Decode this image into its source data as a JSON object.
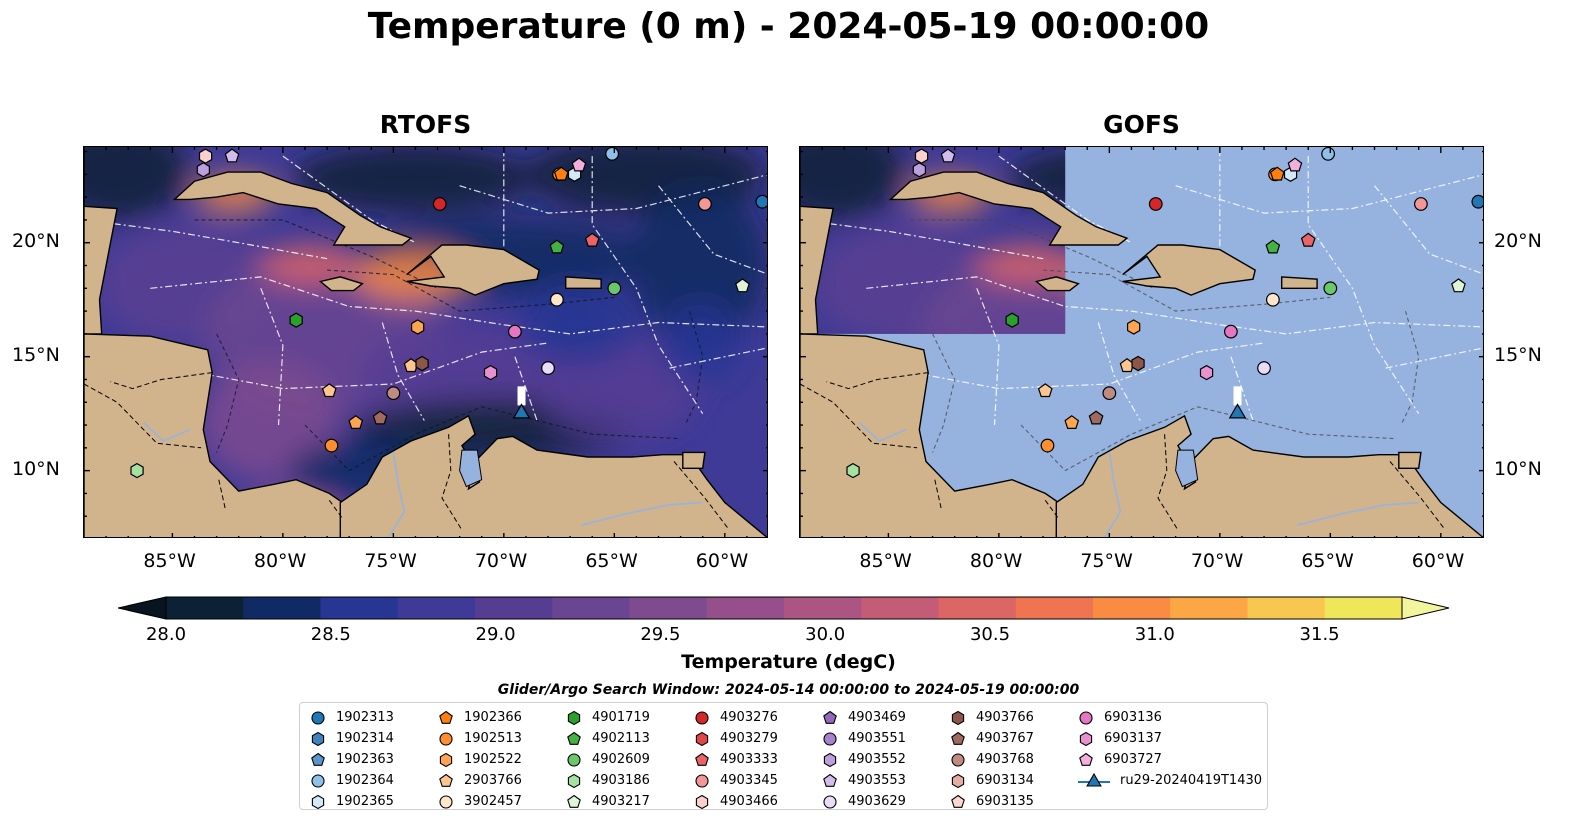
{
  "title": "Temperature (0 m) - 2024-05-19 00:00:00",
  "panels": [
    {
      "id": "rtofs",
      "title": "RTOFS"
    },
    {
      "id": "gofs",
      "title": "GOFS"
    }
  ],
  "map_extent": {
    "lon": [
      -89,
      -58
    ],
    "lat": [
      7,
      24.2
    ]
  },
  "lat_ticks": [
    {
      "lat": 20,
      "label": "20°N"
    },
    {
      "lat": 15,
      "label": "15°N"
    },
    {
      "lat": 10,
      "label": "10°N"
    }
  ],
  "lon_ticks": [
    {
      "lon": -85,
      "label": "85°W"
    },
    {
      "lon": -80,
      "label": "80°W"
    },
    {
      "lon": -75,
      "label": "75°W"
    },
    {
      "lon": -70,
      "label": "70°W"
    },
    {
      "lon": -65,
      "label": "65°W"
    },
    {
      "lon": -60,
      "label": "60°W"
    }
  ],
  "colorbar": {
    "label": "Temperature (degC)",
    "min": 28.0,
    "max": 31.75,
    "step": 0.25,
    "colors": [
      "#0d2134",
      "#122a63",
      "#273593",
      "#3f3a97",
      "#553d94",
      "#6a4592",
      "#7e4b8f",
      "#954f8a",
      "#ac5583",
      "#c45b77",
      "#dc6566",
      "#ef7552",
      "#f98b42",
      "#fca744",
      "#f7c750",
      "#f0e65a"
    ],
    "over_color": "#f3f59e",
    "under_color": "#061520",
    "ticks": [
      {
        "value": 28.0,
        "label": "28.0"
      },
      {
        "value": 28.5,
        "label": "28.5"
      },
      {
        "value": 29.0,
        "label": "29.0"
      },
      {
        "value": 29.5,
        "label": "29.5"
      },
      {
        "value": 30.0,
        "label": "30.0"
      },
      {
        "value": 30.5,
        "label": "30.5"
      },
      {
        "value": 31.0,
        "label": "31.0"
      },
      {
        "value": 31.5,
        "label": "31.5"
      }
    ]
  },
  "search_window": "Glider/Argo Search Window: 2024-05-14 00:00:00 to 2024-05-19 00:00:00",
  "land_color": "#d2b48c",
  "gofs_missing_color": "#95b3de",
  "floats": [
    {
      "id": "1902313",
      "marker": "circle",
      "color": "#1f77b4"
    },
    {
      "id": "1902314",
      "marker": "hexagon",
      "color": "#3d84bd"
    },
    {
      "id": "1902363",
      "marker": "pentagon",
      "color": "#5b95cc"
    },
    {
      "id": "1902364",
      "marker": "circle",
      "color": "#8fc0e8"
    },
    {
      "id": "1902365",
      "marker": "hexagon",
      "color": "#d5e8f8"
    },
    {
      "id": "1902366",
      "marker": "pentagon",
      "color": "#ff7f0e"
    },
    {
      "id": "1902513",
      "marker": "circle",
      "color": "#ff8f2e"
    },
    {
      "id": "1902522",
      "marker": "hexagon",
      "color": "#ffa552"
    },
    {
      "id": "2903766",
      "marker": "pentagon",
      "color": "#ffc58e"
    },
    {
      "id": "3902457",
      "marker": "circle",
      "color": "#ffe6c9"
    },
    {
      "id": "4901719",
      "marker": "hexagon",
      "color": "#2ca02c"
    },
    {
      "id": "4902113",
      "marker": "pentagon",
      "color": "#43b143"
    },
    {
      "id": "4902609",
      "marker": "circle",
      "color": "#69c869"
    },
    {
      "id": "4903186",
      "marker": "hexagon",
      "color": "#a5e1a0"
    },
    {
      "id": "4903217",
      "marker": "pentagon",
      "color": "#dff5d8"
    },
    {
      "id": "4903276",
      "marker": "circle",
      "color": "#d62728"
    },
    {
      "id": "4903279",
      "marker": "hexagon",
      "color": "#e04548"
    },
    {
      "id": "4903333",
      "marker": "pentagon",
      "color": "#ea6467"
    },
    {
      "id": "4903345",
      "marker": "circle",
      "color": "#f29696"
    },
    {
      "id": "4903466",
      "marker": "hexagon",
      "color": "#fbd0cc"
    },
    {
      "id": "4903469",
      "marker": "pentagon",
      "color": "#9467bd"
    },
    {
      "id": "4903551",
      "marker": "circle",
      "color": "#a883cc"
    },
    {
      "id": "4903552",
      "marker": "hexagon",
      "color": "#bc9fdc"
    },
    {
      "id": "4903553",
      "marker": "pentagon",
      "color": "#d2bdea"
    },
    {
      "id": "4903629",
      "marker": "circle",
      "color": "#e8dcf6"
    },
    {
      "id": "4903766",
      "marker": "hexagon",
      "color": "#8c564b"
    },
    {
      "id": "4903767",
      "marker": "pentagon",
      "color": "#a06a5e"
    },
    {
      "id": "4903768",
      "marker": "circle",
      "color": "#c08b80"
    },
    {
      "id": "6903134",
      "marker": "hexagon",
      "color": "#e3aea4"
    },
    {
      "id": "6903135",
      "marker": "pentagon",
      "color": "#fcd9cf"
    },
    {
      "id": "6903136",
      "marker": "circle",
      "color": "#e377c2"
    },
    {
      "id": "6903137",
      "marker": "hexagon",
      "color": "#e990cf"
    },
    {
      "id": "6903727",
      "marker": "pentagon",
      "color": "#f2afdc"
    }
  ],
  "glider": {
    "id": "ru29-20240419T1430",
    "marker": "triangle",
    "color": "#1f77b4",
    "lon": -69.2,
    "lat": 12.6
  },
  "map_markers": [
    {
      "marker": "circle",
      "color": "#d62728",
      "lon": -72.9,
      "lat": 21.7
    },
    {
      "marker": "circle",
      "color": "#ff8f2e",
      "lon": -67.5,
      "lat": 23.0
    },
    {
      "marker": "pentagon",
      "color": "#ff7f0e",
      "lon": -67.4,
      "lat": 23.0
    },
    {
      "marker": "hexagon",
      "color": "#d5e8f8",
      "lon": -66.8,
      "lat": 23.0
    },
    {
      "marker": "pentagon",
      "color": "#f2afdc",
      "lon": -66.6,
      "lat": 23.4
    },
    {
      "marker": "circle",
      "color": "#8fc0e8",
      "lon": -65.1,
      "lat": 23.9
    },
    {
      "marker": "circle",
      "color": "#f29696",
      "lon": -60.9,
      "lat": 21.7
    },
    {
      "marker": "circle",
      "color": "#1f77b4",
      "lon": -58.3,
      "lat": 21.8
    },
    {
      "marker": "pentagon",
      "color": "#43b143",
      "lon": -67.6,
      "lat": 19.8
    },
    {
      "marker": "pentagon",
      "color": "#ea6467",
      "lon": -66.0,
      "lat": 20.1
    },
    {
      "marker": "circle",
      "color": "#ffe6c9",
      "lon": -67.6,
      "lat": 17.5
    },
    {
      "marker": "circle",
      "color": "#69c869",
      "lon": -65.0,
      "lat": 18.0
    },
    {
      "marker": "pentagon",
      "color": "#dff5d8",
      "lon": -59.2,
      "lat": 18.1
    },
    {
      "marker": "hexagon",
      "color": "#2ca02c",
      "lon": -79.4,
      "lat": 16.6
    },
    {
      "marker": "hexagon",
      "color": "#ffa552",
      "lon": -73.9,
      "lat": 16.3
    },
    {
      "marker": "circle",
      "color": "#e377c2",
      "lon": -69.5,
      "lat": 16.1
    },
    {
      "marker": "pentagon",
      "color": "#ffc58e",
      "lon": -74.2,
      "lat": 14.6
    },
    {
      "marker": "hexagon",
      "color": "#8c564b",
      "lon": -73.7,
      "lat": 14.7
    },
    {
      "marker": "hexagon",
      "color": "#e990cf",
      "lon": -70.6,
      "lat": 14.3
    },
    {
      "marker": "circle",
      "color": "#e8dcf6",
      "lon": -68.0,
      "lat": 14.5
    },
    {
      "marker": "pentagon",
      "color": "#ffc58e",
      "lon": -77.9,
      "lat": 13.5
    },
    {
      "marker": "circle",
      "color": "#c08b80",
      "lon": -75.0,
      "lat": 13.4
    },
    {
      "marker": "pentagon",
      "color": "#a06a5e",
      "lon": -75.6,
      "lat": 12.3
    },
    {
      "marker": "pentagon",
      "color": "#ffa552",
      "lon": -76.7,
      "lat": 12.1
    },
    {
      "marker": "circle",
      "color": "#ff8f2e",
      "lon": -77.8,
      "lat": 11.1
    },
    {
      "marker": "hexagon",
      "color": "#a5e1a0",
      "lon": -86.6,
      "lat": 10.0
    },
    {
      "marker": "hexagon",
      "color": "#fbd0cc",
      "lon": -83.5,
      "lat": 23.8
    },
    {
      "marker": "pentagon",
      "color": "#d2bdea",
      "lon": -82.3,
      "lat": 23.8
    },
    {
      "marker": "hexagon",
      "color": "#bc9fdc",
      "lon": -83.6,
      "lat": 23.2
    }
  ]
}
